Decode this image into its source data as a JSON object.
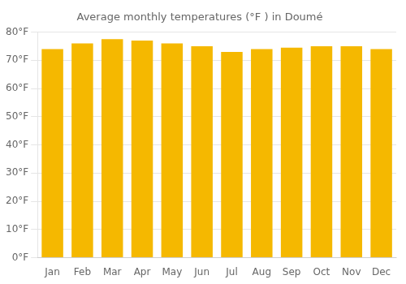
{
  "chart_data": {
    "type": "bar",
    "title": "Average monthly temperatures (°F ) in Doumé",
    "categories": [
      "Jan",
      "Feb",
      "Mar",
      "Apr",
      "May",
      "Jun",
      "Jul",
      "Aug",
      "Sep",
      "Oct",
      "Nov",
      "Dec"
    ],
    "values": [
      74,
      76,
      77.5,
      77,
      76,
      75,
      73,
      74,
      74.5,
      75,
      75,
      74
    ],
    "color": "#F5B800",
    "ylim": [
      0,
      80
    ],
    "yticks": [
      {
        "value": 0,
        "label": "0°F"
      },
      {
        "value": 10,
        "label": "10°F"
      },
      {
        "value": 20,
        "label": "20°F"
      },
      {
        "value": 30,
        "label": "30°F"
      },
      {
        "value": 40,
        "label": "40°F"
      },
      {
        "value": 50,
        "label": "50°F"
      },
      {
        "value": 60,
        "label": "60°F"
      },
      {
        "value": 70,
        "label": "70°F"
      },
      {
        "value": 80,
        "label": "80°F"
      }
    ],
    "grid": true
  }
}
